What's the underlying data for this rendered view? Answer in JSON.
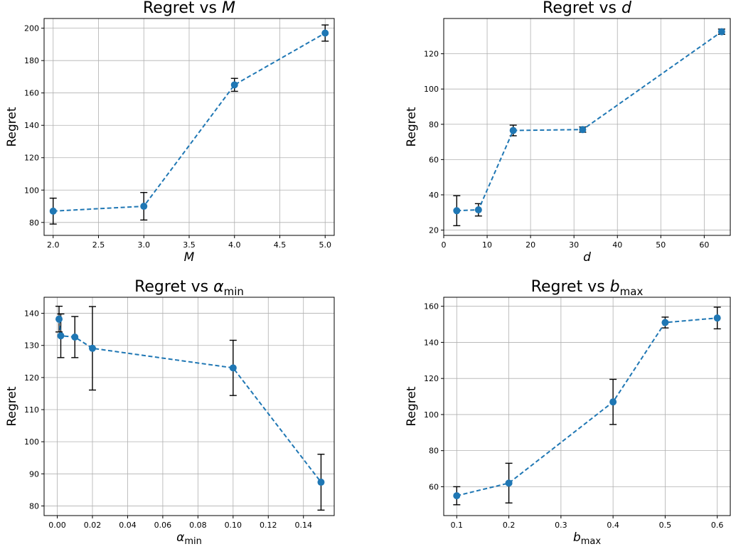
{
  "chart_data": [
    {
      "type": "line",
      "title": {
        "base": "Regret vs",
        "var": "M",
        "sub": ""
      },
      "xlabel": {
        "base": "M",
        "sub": ""
      },
      "ylabel": "Regret",
      "xlim": [
        1.9,
        5.1
      ],
      "ylim": [
        72,
        206
      ],
      "xticks": [
        2.0,
        2.5,
        3.0,
        3.5,
        4.0,
        4.5,
        5.0
      ],
      "xtick_labels": [
        "2.0",
        "2.5",
        "3.0",
        "3.5",
        "4.0",
        "4.5",
        "5.0"
      ],
      "yticks": [
        80,
        100,
        120,
        140,
        160,
        180,
        200
      ],
      "ytick_labels": [
        "80",
        "100",
        "120",
        "140",
        "160",
        "180",
        "200"
      ],
      "grid": true,
      "line_style": "dashed",
      "series": [
        {
          "x": [
            2,
            3,
            4,
            5
          ],
          "y": [
            87,
            90,
            165,
            197
          ],
          "err": [
            8,
            8.5,
            4,
            5
          ]
        }
      ]
    },
    {
      "type": "line",
      "title": {
        "base": "Regret vs",
        "var": "d",
        "sub": ""
      },
      "xlabel": {
        "base": "d",
        "sub": ""
      },
      "ylabel": "Regret",
      "xlim": [
        0,
        66
      ],
      "ylim": [
        17,
        140
      ],
      "xticks": [
        0,
        10,
        20,
        30,
        40,
        50,
        60
      ],
      "xtick_labels": [
        "0",
        "10",
        "20",
        "30",
        "40",
        "50",
        "60"
      ],
      "yticks": [
        20,
        40,
        60,
        80,
        100,
        120
      ],
      "ytick_labels": [
        "20",
        "40",
        "60",
        "80",
        "100",
        "120"
      ],
      "grid": true,
      "line_style": "dashed",
      "series": [
        {
          "x": [
            3,
            8,
            16,
            32,
            64
          ],
          "y": [
            31,
            31.5,
            76.5,
            77,
            132.5
          ],
          "err": [
            8.5,
            3.5,
            3,
            1.5,
            1.5
          ]
        }
      ]
    },
    {
      "type": "line",
      "title": {
        "base": "Regret vs",
        "var": "α",
        "sub": "min"
      },
      "xlabel": {
        "base": "α",
        "sub": "min"
      },
      "ylabel": "Regret",
      "xlim": [
        -0.0075,
        0.1575
      ],
      "ylim": [
        77,
        145
      ],
      "xticks": [
        0.0,
        0.02,
        0.04,
        0.06,
        0.08,
        0.1,
        0.12,
        0.14
      ],
      "xtick_labels": [
        "0.00",
        "0.02",
        "0.04",
        "0.06",
        "0.08",
        "0.10",
        "0.12",
        "0.14"
      ],
      "yticks": [
        80,
        90,
        100,
        110,
        120,
        130,
        140
      ],
      "ytick_labels": [
        "80",
        "90",
        "100",
        "110",
        "120",
        "130",
        "140"
      ],
      "grid": true,
      "line_style": "dashed",
      "series": [
        {
          "x": [
            0.001,
            0.002,
            0.01,
            0.02,
            0.1,
            0.15
          ],
          "y": [
            138.2,
            133,
            132.6,
            129.1,
            123,
            87.4
          ],
          "err": [
            4,
            6.8,
            6.4,
            13,
            8.6,
            8.7
          ]
        }
      ]
    },
    {
      "type": "line",
      "title": {
        "base": "Regret vs",
        "var": "b",
        "sub": "max"
      },
      "xlabel": {
        "base": "b",
        "sub": "max"
      },
      "ylabel": "Regret",
      "xlim": [
        0.075,
        0.625
      ],
      "ylim": [
        44,
        165
      ],
      "xticks": [
        0.1,
        0.2,
        0.3,
        0.4,
        0.5,
        0.6
      ],
      "xtick_labels": [
        "0.1",
        "0.2",
        "0.3",
        "0.4",
        "0.5",
        "0.6"
      ],
      "yticks": [
        60,
        80,
        100,
        120,
        140,
        160
      ],
      "ytick_labels": [
        "60",
        "80",
        "100",
        "120",
        "140",
        "160"
      ],
      "grid": true,
      "line_style": "dashed",
      "series": [
        {
          "x": [
            0.1,
            0.2,
            0.4,
            0.5,
            0.6
          ],
          "y": [
            55,
            62,
            107,
            151,
            153.5
          ],
          "err": [
            5,
            11,
            12.5,
            3,
            6
          ]
        }
      ]
    }
  ],
  "colors": {
    "line": "#1f77b4",
    "errorbar": "#000000",
    "grid": "#b0b0b0",
    "axes": "#000000"
  }
}
